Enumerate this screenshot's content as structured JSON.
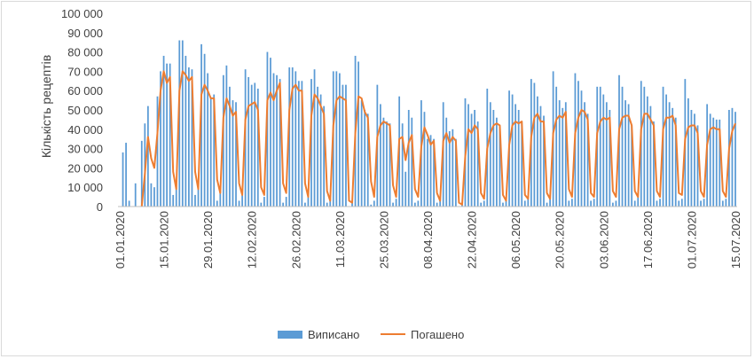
{
  "chart_data": {
    "type": "bar",
    "ylabel": "Кількість рецептів",
    "xlabel": "",
    "title": "",
    "ylim": [
      0,
      100000
    ],
    "y_ticks": [
      "0",
      "10 000",
      "20 000",
      "30 000",
      "40 000",
      "50 000",
      "60 000",
      "70 000",
      "80 000",
      "90 000",
      "100 000"
    ],
    "x_start": "2020-01-01",
    "x_end": "2020-07-15",
    "x_tick_labels": [
      "01.01.2020",
      "15.01.2020",
      "29.01.2020",
      "12.02.2020",
      "26.02.2020",
      "11.03.2020",
      "25.03.2020",
      "08.04.2020",
      "22.04.2020",
      "06.05.2020",
      "20.05.2020",
      "03.06.2020",
      "17.06.2020",
      "01.07.2020",
      "15.07.2020"
    ],
    "legend_position": "bottom",
    "series": [
      {
        "name": "Виписано",
        "type": "bar",
        "color": "#5B9BD5",
        "values": [
          0,
          28000,
          33000,
          3000,
          0,
          12000,
          0,
          34000,
          43000,
          52000,
          12000,
          10000,
          57000,
          70000,
          78000,
          74000,
          74000,
          6000,
          12000,
          86000,
          86000,
          78000,
          72000,
          71000,
          6000,
          10000,
          84000,
          79000,
          69000,
          56000,
          58000,
          3000,
          8000,
          68000,
          73000,
          62000,
          55000,
          54000,
          3000,
          6000,
          71000,
          67000,
          63000,
          64000,
          61000,
          2000,
          5000,
          80000,
          77000,
          69000,
          68000,
          66000,
          2000,
          5000,
          72000,
          72000,
          70000,
          65000,
          65000,
          2000,
          5000,
          66000,
          71000,
          62000,
          58000,
          52000,
          2000,
          4000,
          70000,
          70000,
          69000,
          63000,
          63000,
          0,
          3000,
          78000,
          75000,
          55000,
          50000,
          48000,
          1000,
          3000,
          63000,
          53000,
          46000,
          44000,
          43000,
          2000,
          4000,
          57000,
          43000,
          18000,
          50000,
          46000,
          2000,
          3000,
          55000,
          49000,
          35000,
          37000,
          35000,
          2000,
          4000,
          54000,
          46000,
          39000,
          40000,
          35000,
          0,
          2000,
          56000,
          53000,
          48000,
          50000,
          44000,
          2000,
          3000,
          61000,
          54000,
          50000,
          46000,
          41000,
          2000,
          4000,
          60000,
          58000,
          53000,
          50000,
          44000,
          3000,
          4000,
          66000,
          64000,
          57000,
          52000,
          47000,
          2000,
          4000,
          70000,
          62000,
          55000,
          51000,
          54000,
          3000,
          4000,
          69000,
          65000,
          60000,
          54000,
          48000,
          3000,
          4000,
          62000,
          62000,
          58000,
          54000,
          50000,
          2000,
          3000,
          68000,
          62000,
          55000,
          53000,
          42000,
          3000,
          5000,
          65000,
          62000,
          57000,
          52000,
          44000,
          3000,
          4000,
          62000,
          58000,
          54000,
          51000,
          46000,
          3000,
          4000,
          66000,
          56000,
          50000,
          48000,
          42000,
          3000,
          4000,
          53000,
          48000,
          46000,
          45000,
          45000,
          3000,
          4000,
          50000,
          51000,
          49000
        ]
      },
      {
        "name": "Погашено",
        "type": "line",
        "color": "#ED7D31",
        "values": [
          null,
          null,
          null,
          null,
          null,
          null,
          null,
          0,
          17000,
          36000,
          25000,
          20000,
          38000,
          60000,
          70000,
          64000,
          67000,
          18000,
          9000,
          60000,
          70000,
          68000,
          65000,
          67000,
          18000,
          9000,
          58000,
          63000,
          60000,
          56000,
          56000,
          14000,
          7000,
          46000,
          56000,
          52000,
          47000,
          49000,
          12000,
          6000,
          45000,
          52000,
          53000,
          54000,
          50000,
          10000,
          6000,
          55000,
          59000,
          55000,
          60000,
          64000,
          12000,
          7000,
          50000,
          61000,
          63000,
          60000,
          60000,
          12000,
          5000,
          47000,
          58000,
          56000,
          52000,
          48000,
          8000,
          3000,
          42000,
          55000,
          57000,
          56000,
          55000,
          3000,
          2000,
          38000,
          57000,
          56000,
          49000,
          46000,
          13000,
          5000,
          36000,
          42000,
          44000,
          43000,
          42000,
          11000,
          5000,
          35000,
          36000,
          24000,
          33000,
          37000,
          9000,
          5000,
          31000,
          41000,
          37000,
          32000,
          34000,
          7000,
          3000,
          34000,
          38000,
          33000,
          36000,
          34000,
          2000,
          1000,
          26000,
          40000,
          38000,
          42000,
          40000,
          7000,
          4000,
          30000,
          38000,
          42000,
          43000,
          42000,
          6000,
          3000,
          32000,
          42000,
          44000,
          43000,
          44000,
          6000,
          4000,
          36000,
          46000,
          48000,
          44000,
          44000,
          7000,
          4000,
          38000,
          45000,
          47000,
          46000,
          49000,
          9000,
          5000,
          38000,
          46000,
          50000,
          49000,
          45000,
          7000,
          5000,
          38000,
          44000,
          46000,
          45000,
          46000,
          8000,
          5000,
          40000,
          46000,
          47000,
          47000,
          42000,
          8000,
          5000,
          40000,
          48000,
          48000,
          45000,
          42000,
          8000,
          5000,
          40000,
          46000,
          46000,
          47000,
          42000,
          7000,
          6000,
          35000,
          41000,
          42000,
          42000,
          38000,
          8000,
          5000,
          32000,
          40000,
          41000,
          40000,
          40000,
          8000,
          5000,
          30000,
          39000,
          43000
        ]
      }
    ]
  }
}
